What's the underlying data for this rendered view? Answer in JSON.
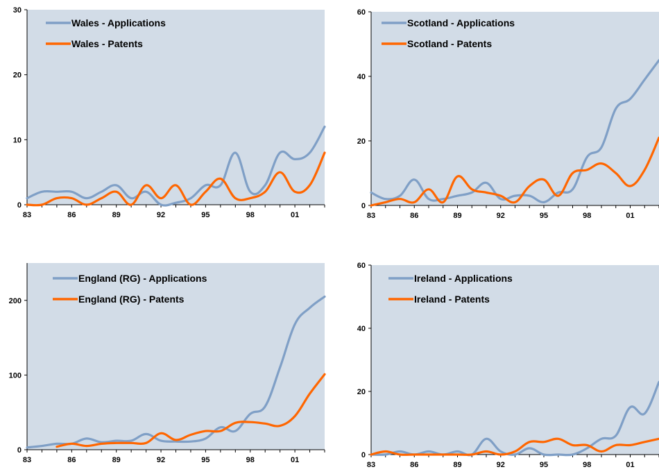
{
  "chart_data": [
    {
      "type": "line",
      "x": [
        83,
        84,
        85,
        86,
        87,
        88,
        89,
        90,
        91,
        92,
        93,
        94,
        95,
        96,
        97,
        98,
        99,
        100,
        101,
        102,
        103
      ],
      "xticks": [
        "83",
        "86",
        "89",
        "92",
        "95",
        "98",
        "01"
      ],
      "xtick_values": [
        83,
        86,
        89,
        92,
        95,
        98,
        101
      ],
      "yticks": [
        0,
        10,
        20,
        30
      ],
      "ylim": [
        0,
        30
      ],
      "series": [
        {
          "name": "Wales - Applications",
          "color": "#7f9fc6",
          "values": [
            1,
            2,
            2,
            2,
            1,
            2,
            3,
            1,
            2,
            0,
            0.3,
            1,
            3,
            3,
            8,
            2,
            3,
            8,
            7,
            8,
            12
          ]
        },
        {
          "name": "Wales - Patents",
          "color": "#ff6600",
          "values": [
            0,
            0,
            1,
            1,
            0,
            1,
            2,
            0,
            3,
            1,
            3,
            0,
            2,
            4,
            1,
            1,
            2,
            5,
            2,
            3,
            8
          ]
        }
      ]
    },
    {
      "type": "line",
      "x": [
        83,
        84,
        85,
        86,
        87,
        88,
        89,
        90,
        91,
        92,
        93,
        94,
        95,
        96,
        97,
        98,
        99,
        100,
        101,
        102,
        103
      ],
      "xticks": [
        "83",
        "86",
        "89",
        "92",
        "95",
        "98",
        "01"
      ],
      "xtick_values": [
        83,
        86,
        89,
        92,
        95,
        98,
        101
      ],
      "yticks": [
        0,
        20,
        40,
        60
      ],
      "ylim": [
        0,
        60
      ],
      "series": [
        {
          "name": "Scotland - Applications",
          "color": "#7f9fc6",
          "values": [
            4,
            2,
            3,
            8,
            2,
            2,
            3,
            4,
            7,
            2,
            3,
            3,
            1,
            4,
            5,
            15,
            18,
            30,
            33,
            39,
            45
          ]
        },
        {
          "name": "Scotland - Patents",
          "color": "#ff6600",
          "values": [
            0,
            1,
            2,
            1,
            5,
            1,
            9,
            5,
            4,
            3,
            1,
            6,
            8,
            3,
            10,
            11,
            13,
            10,
            6,
            11,
            21
          ]
        }
      ]
    },
    {
      "type": "line",
      "x": [
        83,
        84,
        85,
        86,
        87,
        88,
        89,
        90,
        91,
        92,
        93,
        94,
        95,
        96,
        97,
        98,
        99,
        100,
        101,
        102,
        103
      ],
      "xticks": [
        "83",
        "86",
        "89",
        "92",
        "95",
        "98",
        "01"
      ],
      "xtick_values": [
        83,
        86,
        89,
        92,
        95,
        98,
        101
      ],
      "yticks": [
        0,
        100,
        200
      ],
      "ylim": [
        0,
        250
      ],
      "series": [
        {
          "name": "England (RG) - Applications",
          "color": "#7f9fc6",
          "values": [
            3,
            5,
            8,
            8,
            15,
            10,
            12,
            12,
            21,
            12,
            11,
            11,
            15,
            30,
            25,
            48,
            58,
            110,
            168,
            190,
            205
          ]
        },
        {
          "name": "England (RG) - Patents",
          "color": "#ff6600",
          "values": [
            null,
            null,
            4,
            8,
            5,
            8,
            9,
            9,
            9,
            22,
            13,
            20,
            25,
            25,
            36,
            37,
            35,
            32,
            45,
            75,
            101
          ]
        }
      ]
    },
    {
      "type": "line",
      "x": [
        83,
        84,
        85,
        86,
        87,
        88,
        89,
        90,
        91,
        92,
        93,
        94,
        95,
        96,
        97,
        98,
        99,
        100,
        101,
        102,
        103
      ],
      "xticks": [
        "83",
        "86",
        "89",
        "92",
        "95",
        "98",
        "01"
      ],
      "xtick_values": [
        83,
        86,
        89,
        92,
        95,
        98,
        101
      ],
      "yticks": [
        0,
        20,
        40,
        60
      ],
      "ylim": [
        0,
        60
      ],
      "series": [
        {
          "name": "Ireland - Applications",
          "color": "#7f9fc6",
          "values": [
            0,
            0,
            1,
            0,
            1,
            0,
            1,
            0,
            5,
            1,
            0,
            2,
            0,
            0,
            0,
            2,
            5,
            6,
            15,
            13,
            23
          ]
        },
        {
          "name": "Ireland - Patents",
          "color": "#ff6600",
          "values": [
            0,
            1,
            0,
            0,
            0,
            0,
            0,
            0,
            1,
            0,
            1,
            4,
            4,
            5,
            3,
            3,
            1,
            3,
            3,
            4,
            5
          ]
        }
      ]
    }
  ]
}
